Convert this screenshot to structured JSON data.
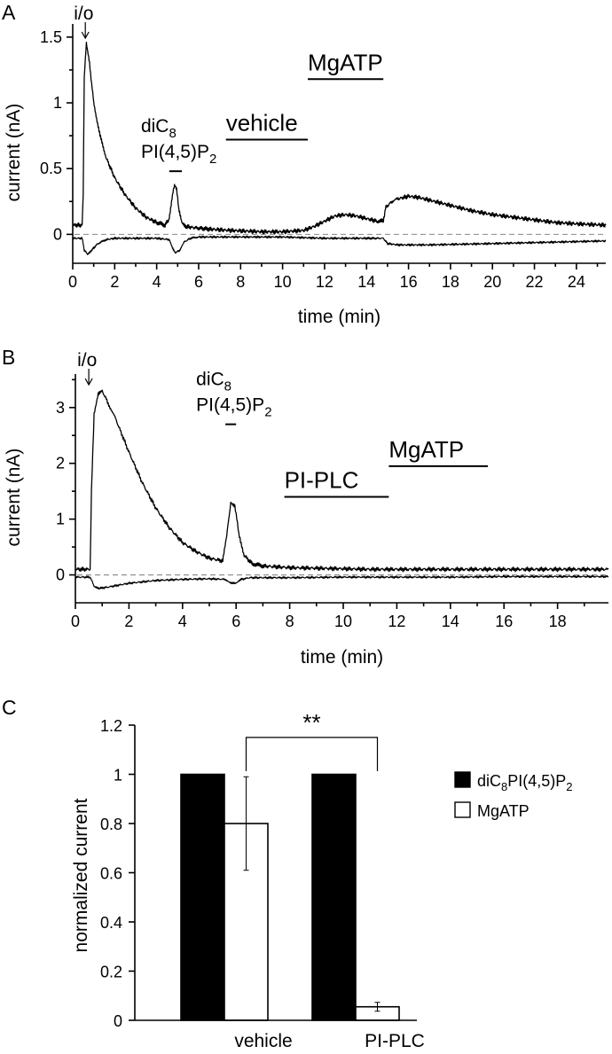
{
  "chart_data": [
    {
      "panel": "A",
      "type": "line",
      "xlabel": "time (min)",
      "ylabel": "current (nA)",
      "xlim": [
        0,
        25.4
      ],
      "ylim": [
        -0.22,
        1.6
      ],
      "xticks": [
        0,
        2,
        4,
        6,
        8,
        10,
        12,
        14,
        16,
        18,
        20,
        22,
        24
      ],
      "yticks": [
        0,
        0.5,
        1,
        1.5
      ],
      "ytick_labels": [
        "0",
        "0.5",
        "1",
        "1.5"
      ],
      "zero_dashed": true,
      "markers": [
        {
          "text": "i/o",
          "x": 0.6,
          "kind": "arrow"
        }
      ],
      "annotations": [
        {
          "lines": [
            "diC8",
            "PI(4,5)P2"
          ],
          "x_start": 4.6,
          "x_end": 5.2,
          "level": 0.48
        },
        {
          "lines": [
            "vehicle"
          ],
          "x_start": 7.3,
          "x_end": 11.2,
          "level": 0.72
        },
        {
          "lines": [
            "MgATP"
          ],
          "x_start": 11.2,
          "x_end": 14.8,
          "level": 1.18
        }
      ],
      "series": [
        {
          "x": [
            0,
            0.45,
            0.5,
            0.55,
            0.65,
            0.8,
            1,
            1.3,
            1.6,
            2,
            2.5,
            3,
            3.5,
            4,
            4.4,
            4.6,
            4.75,
            4.85,
            4.95,
            5.05,
            5.2,
            5.4,
            5.8,
            6.5,
            7.5,
            9,
            10,
            11,
            11.5,
            12,
            12.5,
            13,
            13.5,
            14,
            14.5,
            14.8,
            14.9,
            15.2,
            15.5,
            16,
            16.5,
            17,
            18,
            19,
            20,
            21,
            22,
            23,
            24,
            25.4
          ],
          "y": [
            0.07,
            0.07,
            0.3,
            1.2,
            1.45,
            1.3,
            1.0,
            0.75,
            0.58,
            0.43,
            0.3,
            0.2,
            0.13,
            0.09,
            0.07,
            0.12,
            0.3,
            0.37,
            0.34,
            0.2,
            0.09,
            0.06,
            0.05,
            0.04,
            0.03,
            0.02,
            0.02,
            0.03,
            0.06,
            0.1,
            0.14,
            0.15,
            0.14,
            0.12,
            0.1,
            0.1,
            0.2,
            0.25,
            0.27,
            0.29,
            0.28,
            0.26,
            0.22,
            0.18,
            0.15,
            0.13,
            0.11,
            0.09,
            0.08,
            0.07
          ]
        },
        {
          "x": [
            0,
            0.45,
            0.55,
            0.7,
            0.9,
            1.2,
            1.6,
            2,
            3,
            4,
            4.6,
            4.75,
            4.9,
            5.1,
            5.3,
            5.6,
            6,
            8,
            10,
            12,
            14,
            14.8,
            15,
            15.5,
            17,
            20,
            25.4
          ],
          "y": [
            -0.03,
            -0.03,
            -0.12,
            -0.15,
            -0.12,
            -0.07,
            -0.04,
            -0.03,
            -0.03,
            -0.03,
            -0.04,
            -0.1,
            -0.14,
            -0.12,
            -0.06,
            -0.03,
            -0.02,
            -0.02,
            -0.02,
            -0.03,
            -0.03,
            -0.03,
            -0.07,
            -0.08,
            -0.08,
            -0.07,
            -0.05
          ]
        }
      ]
    },
    {
      "panel": "B",
      "type": "line",
      "xlabel": "time (min)",
      "ylabel": "current (nA)",
      "xlim": [
        0,
        19.9
      ],
      "ylim": [
        -0.5,
        3.6
      ],
      "xticks": [
        0,
        2,
        4,
        6,
        8,
        10,
        12,
        14,
        16,
        18
      ],
      "yticks": [
        0,
        1,
        2,
        3
      ],
      "ytick_labels": [
        "0",
        "1",
        "2",
        "3"
      ],
      "zero_dashed": true,
      "markers": [
        {
          "text": "i/o",
          "x": 0.5,
          "kind": "arrow"
        }
      ],
      "annotations": [
        {
          "lines": [
            "diC8",
            "PI(4,5)P2"
          ],
          "x_start": 5.6,
          "x_end": 6.0,
          "level": 2.7
        },
        {
          "lines": [
            "PI-PLC"
          ],
          "x_start": 7.8,
          "x_end": 11.7,
          "level": 1.4
        },
        {
          "lines": [
            "MgATP"
          ],
          "x_start": 11.7,
          "x_end": 15.4,
          "level": 1.95
        }
      ],
      "series": [
        {
          "x": [
            0,
            0.55,
            0.6,
            0.7,
            0.85,
            1.0,
            1.2,
            1.5,
            2,
            2.5,
            3,
            3.5,
            4,
            4.5,
            5,
            5.5,
            5.65,
            5.8,
            5.95,
            6.1,
            6.3,
            6.6,
            7,
            8,
            9,
            10,
            11,
            12,
            14,
            16,
            18,
            19.9
          ],
          "y": [
            0.1,
            0.1,
            1.5,
            2.9,
            3.25,
            3.3,
            3.1,
            2.8,
            2.2,
            1.65,
            1.2,
            0.85,
            0.58,
            0.42,
            0.3,
            0.25,
            0.7,
            1.3,
            1.25,
            0.75,
            0.35,
            0.2,
            0.16,
            0.13,
            0.12,
            0.11,
            0.1,
            0.1,
            0.1,
            0.1,
            0.1,
            0.1
          ]
        },
        {
          "x": [
            0,
            0.55,
            0.7,
            0.9,
            1.2,
            2,
            3,
            4,
            5,
            5.6,
            5.8,
            6.0,
            6.2,
            6.5,
            8,
            10,
            12,
            14,
            16,
            18,
            19.9
          ],
          "y": [
            -0.04,
            -0.04,
            -0.2,
            -0.24,
            -0.22,
            -0.15,
            -0.1,
            -0.08,
            -0.07,
            -0.08,
            -0.14,
            -0.15,
            -0.08,
            -0.05,
            -0.05,
            -0.04,
            -0.04,
            -0.04,
            -0.03,
            -0.03,
            -0.03
          ]
        }
      ]
    },
    {
      "panel": "C",
      "type": "bar",
      "ylabel": "normalized current",
      "ylim": [
        0,
        1.2
      ],
      "yticks": [
        0,
        0.2,
        0.4,
        0.6,
        0.8,
        1,
        1.2
      ],
      "ytick_labels": [
        "0",
        "0.2",
        "0.4",
        "0.6",
        "0.8",
        "1",
        "1.2"
      ],
      "categories": [
        "vehicle",
        "PI-PLC"
      ],
      "series": [
        {
          "name_parts": [
            "diC",
            "8",
            "PI(4,5)P",
            "2"
          ],
          "fill": "#000000",
          "values": [
            1.0,
            1.0
          ],
          "errors": [
            0,
            0
          ]
        },
        {
          "name": "MgATP",
          "fill": "#ffffff",
          "values": [
            0.8,
            0.055
          ],
          "errors": [
            0.19,
            0.018
          ]
        }
      ],
      "significance": "**"
    }
  ]
}
